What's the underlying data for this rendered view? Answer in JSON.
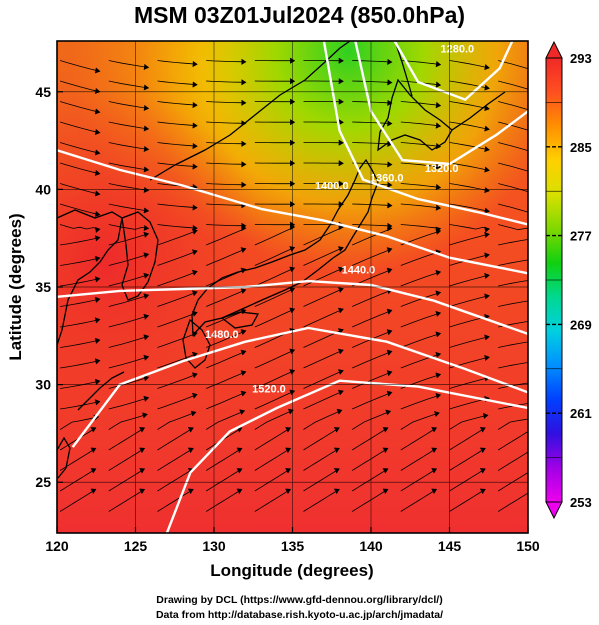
{
  "title": "MSM 03Z01Jul2024 (850.0hPa)",
  "xlabel": "Longitude (degrees)",
  "ylabel": "Latitude  (degrees)",
  "credits": {
    "line1": "Drawing by DCL (https://www.gfd-dennou.org/library/dcl/)",
    "line2": "Data from http://database.rish.kyoto-u.ac.jp/arch/jmadata/"
  },
  "chart_data": {
    "type": "heatmap",
    "xlim": [
      120,
      150
    ],
    "ylim": [
      22.4,
      47.6
    ],
    "x_ticks": [
      {
        "value": 120,
        "label": "120"
      },
      {
        "value": 125,
        "label": "125"
      },
      {
        "value": 130,
        "label": "130"
      },
      {
        "value": 135,
        "label": "135"
      },
      {
        "value": 140,
        "label": "140"
      },
      {
        "value": 145,
        "label": "145"
      },
      {
        "value": 150,
        "label": "150"
      }
    ],
    "y_ticks": [
      {
        "value": 25,
        "label": "25"
      },
      {
        "value": 30,
        "label": "30"
      },
      {
        "value": 35,
        "label": "35"
      },
      {
        "value": 40,
        "label": "40"
      },
      {
        "value": 45,
        "label": "45"
      }
    ],
    "colorbar": {
      "min": 253,
      "max": 293,
      "ticks": [
        {
          "value": 293,
          "label": "293"
        },
        {
          "value": 285,
          "label": "285"
        },
        {
          "value": 277,
          "label": "277"
        },
        {
          "value": 269,
          "label": "269"
        },
        {
          "value": 261,
          "label": "261"
        },
        {
          "value": 253,
          "label": "253"
        }
      ],
      "colors": [
        "#ee00ee",
        "#a000e6",
        "#3010e0",
        "#0040ff",
        "#0090ff",
        "#00d0e0",
        "#00d890",
        "#10d010",
        "#80d800",
        "#d8e000",
        "#ffd000",
        "#ff9000",
        "#ff5020",
        "#f02828"
      ]
    },
    "contours": [
      {
        "label": "1280.0"
      },
      {
        "label": "1320.0"
      },
      {
        "label": "1360.0"
      },
      {
        "label": "1400.0"
      },
      {
        "label": "1440.0"
      },
      {
        "label": "1480.0"
      },
      {
        "label": "1520.0"
      }
    ],
    "colors": {
      "contour": "#ffffff",
      "streamline": "#000000",
      "coast": "#000000"
    }
  }
}
